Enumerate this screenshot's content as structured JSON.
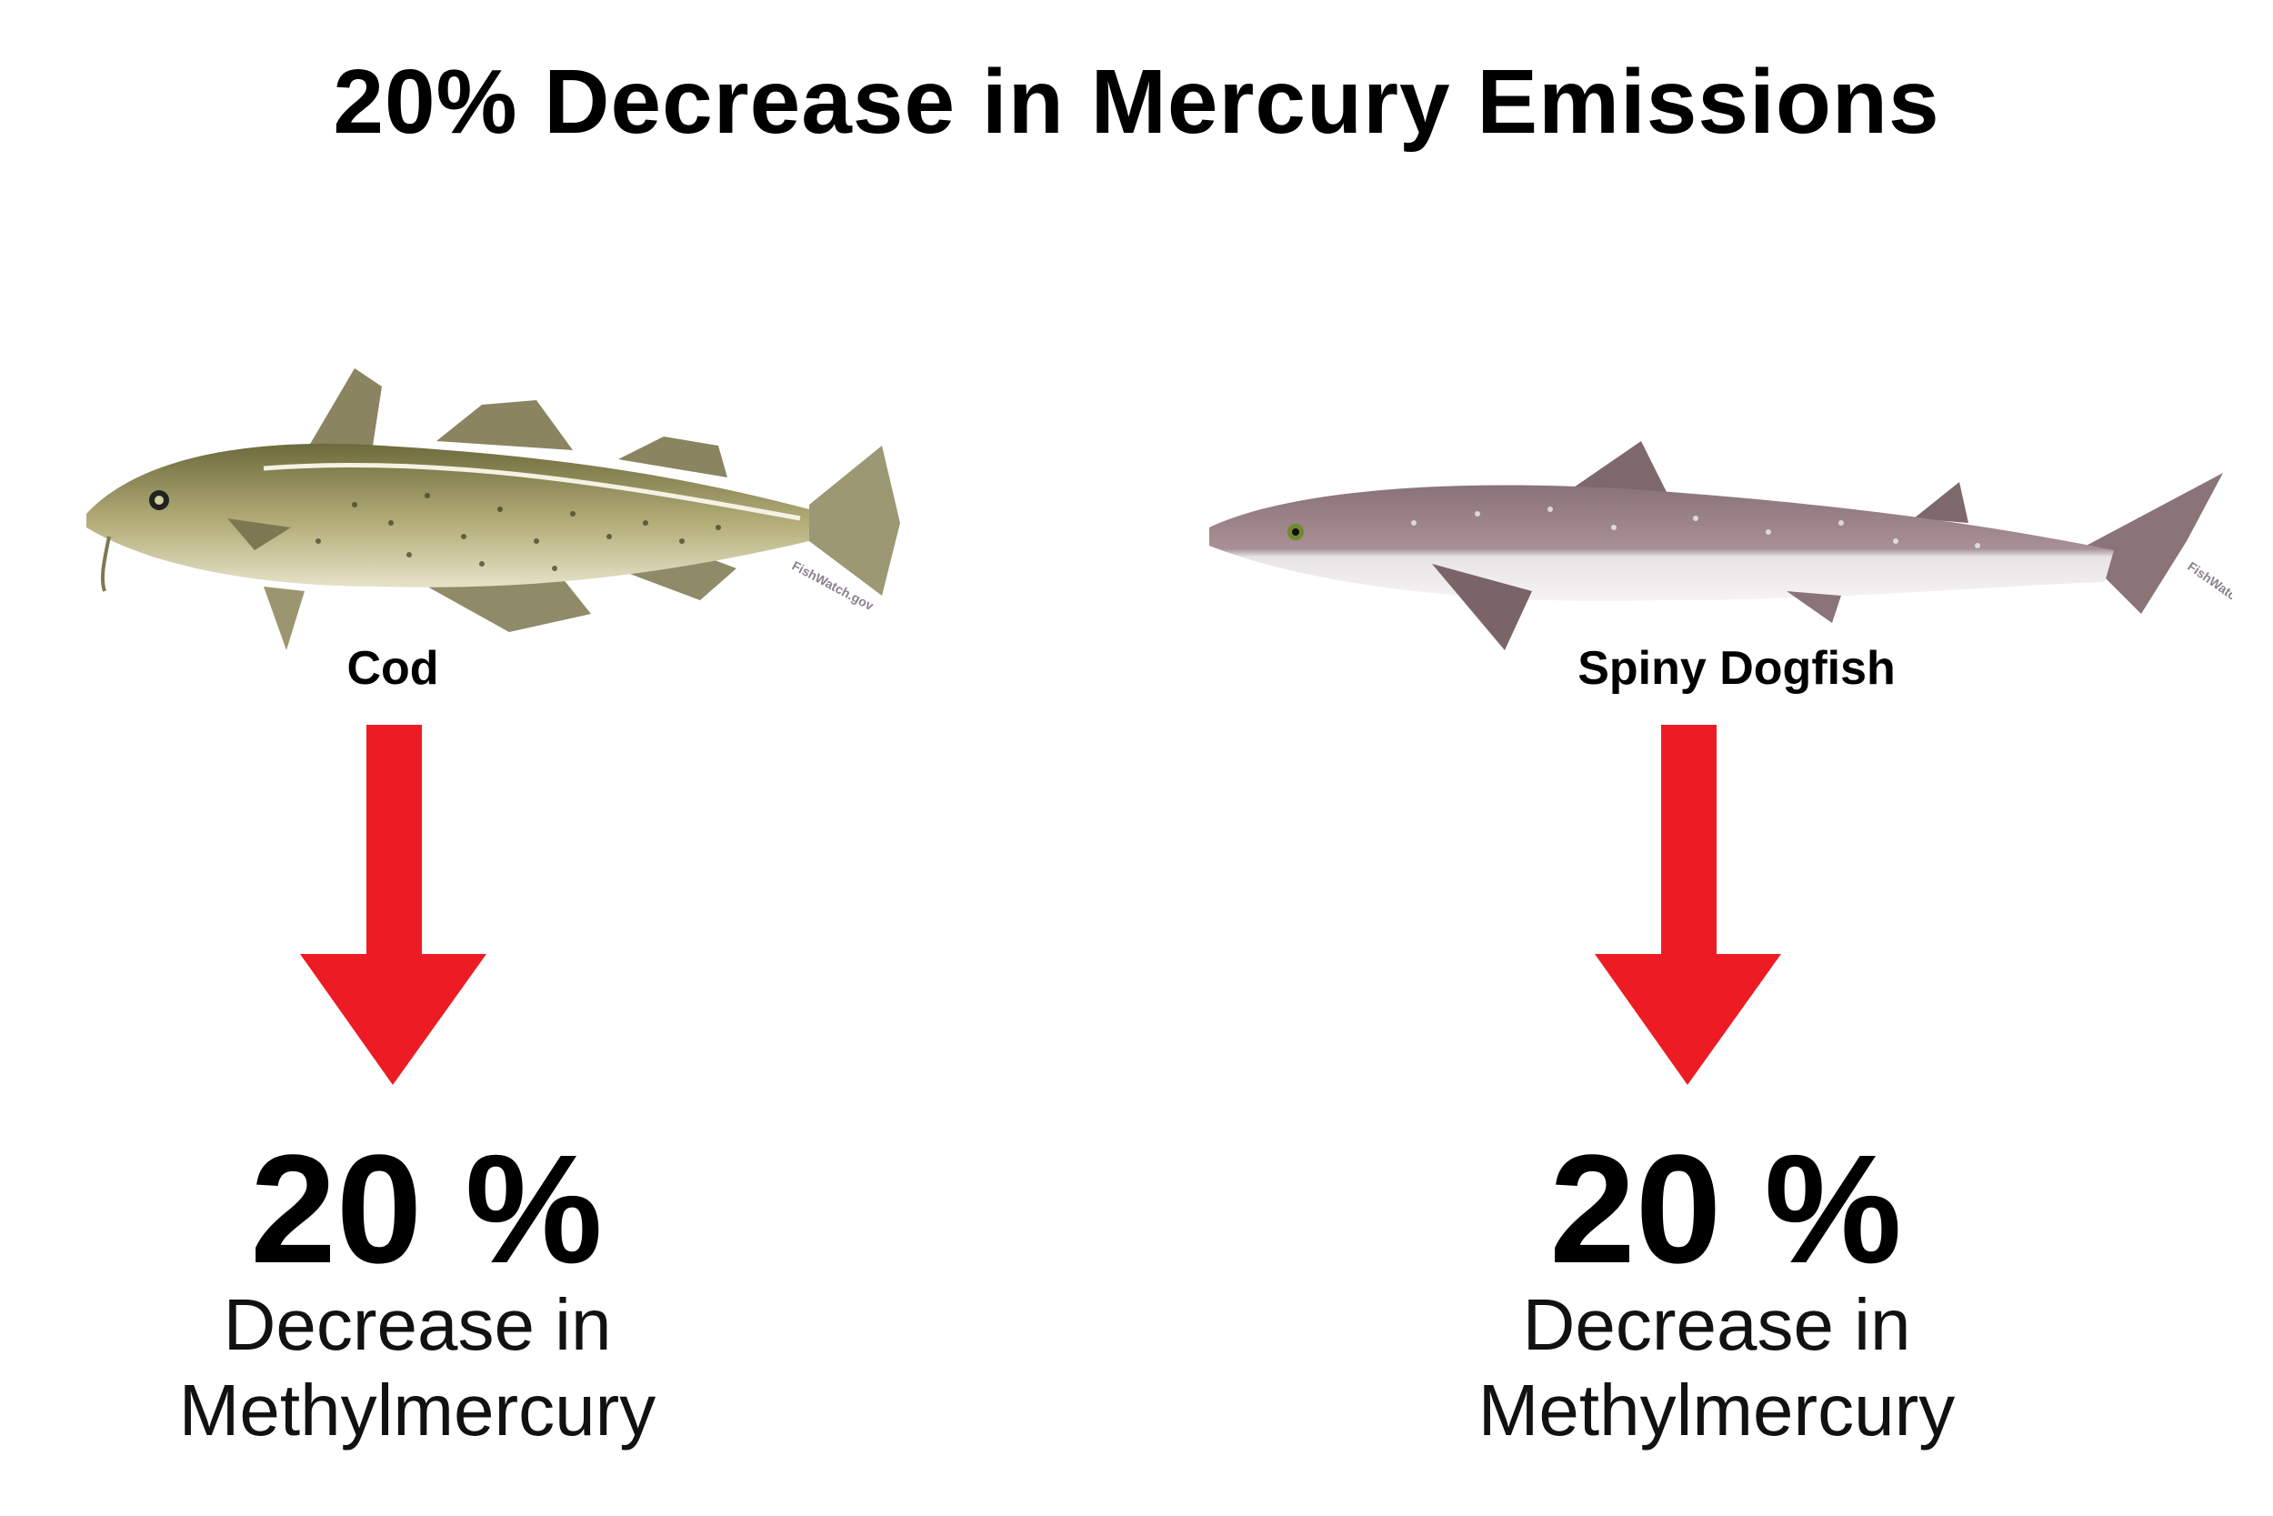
{
  "title": "20% Decrease in Mercury Emissions",
  "colors": {
    "arrow": "#ed1c24",
    "text": "#000000"
  },
  "panels": [
    {
      "fish": "Cod",
      "icon": "cod-illustration",
      "watermark": "FishWatch.gov",
      "percent": "20 %",
      "desc_line1": "Decrease in",
      "desc_line2": "Methylmercury"
    },
    {
      "fish": "Spiny Dogfish",
      "icon": "spiny-dogfish-illustration",
      "watermark": "FishWatch.gov",
      "percent": "20 %",
      "desc_line1": "Decrease in",
      "desc_line2": "Methylmercury"
    }
  ]
}
